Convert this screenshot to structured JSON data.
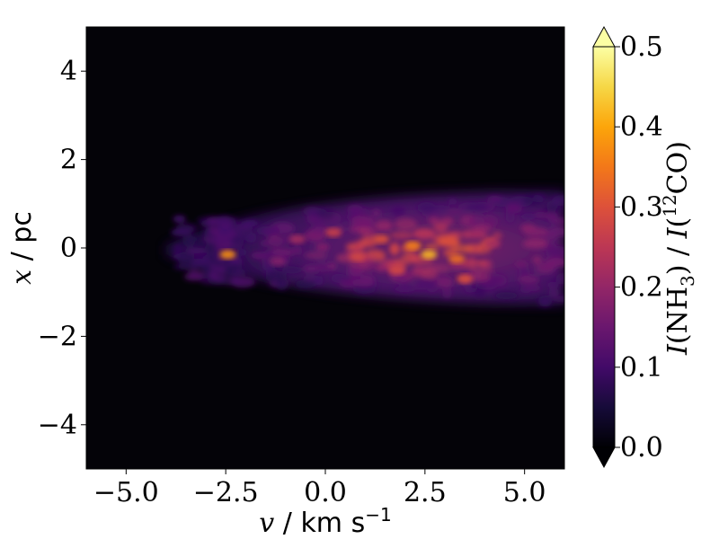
{
  "chart_data": {
    "type": "heatmap",
    "title": "",
    "colormap": "inferno",
    "xlabel": {
      "symbol": "v",
      "sep": " / ",
      "unit": "km s",
      "exp": "−1"
    },
    "ylabel": {
      "symbol": "x",
      "sep": " / ",
      "unit": "pc"
    },
    "xlim": [
      -6.0,
      6.0
    ],
    "ylim": [
      -5.0,
      5.0
    ],
    "x_ticks": [
      -5.0,
      -2.5,
      0.0,
      2.5,
      5.0
    ],
    "x_tick_labels": [
      "−5.0",
      "−2.5",
      "0.0",
      "2.5",
      "5.0"
    ],
    "y_ticks": [
      -4,
      -2,
      0,
      2,
      4
    ],
    "y_tick_labels": [
      "−4",
      "−2",
      "0",
      "2",
      "4"
    ],
    "colorbar": {
      "label": {
        "a": "I",
        "b": "(NH",
        "sub": "3",
        "c": ") / ",
        "d": "I",
        "e": "(",
        "sup": "12",
        "f": "CO)"
      },
      "range": [
        0.0,
        0.5
      ],
      "extend": "both",
      "ticks": [
        0.0,
        0.1,
        0.2,
        0.3,
        0.4,
        0.5
      ],
      "tick_labels": [
        "0.0",
        "0.1",
        "0.2",
        "0.3",
        "0.4",
        "0.5"
      ]
    },
    "emission_region": {
      "description_values": {
        "x_center_range_kms": [
          -4.0,
          6.0
        ],
        "half_width_pc_at_left": 0.7,
        "half_width_pc_at_right": 1.3,
        "peak_ratio": 0.42,
        "peak_location": [
          2.5,
          -0.2
        ],
        "background_ratio": 0.0
      },
      "clumps": [
        [
          -2.45,
          -0.15,
          0.38
        ],
        [
          2.6,
          -0.15,
          0.42
        ],
        [
          2.2,
          0.05,
          0.36
        ],
        [
          3.3,
          -0.25,
          0.34
        ],
        [
          3.5,
          -0.7,
          0.3
        ],
        [
          1.4,
          0.2,
          0.3
        ],
        [
          0.2,
          0.35,
          0.27
        ],
        [
          -0.7,
          0.2,
          0.22
        ],
        [
          1.8,
          -0.5,
          0.28
        ],
        [
          4.2,
          0.1,
          0.22
        ],
        [
          -1.2,
          -0.3,
          0.18
        ],
        [
          0.8,
          -0.2,
          0.28
        ]
      ]
    }
  }
}
